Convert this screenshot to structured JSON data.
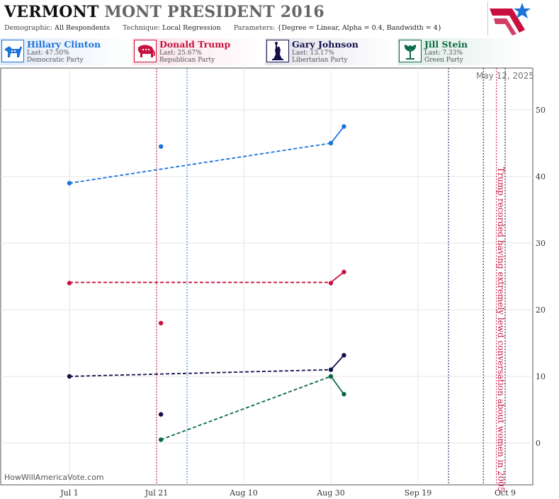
{
  "header": {
    "title_state": "VERMONT",
    "title_rest": "MONT PRESIDENT 2016",
    "demographic_label": "Demographic:",
    "demographic_value": "All Respondents",
    "technique_label": "Technique:",
    "technique_value": "Local Regression",
    "parameters_label": "Parameters:",
    "parameters_value": "{Degree = Linear, Alpha = 0.4, Bandwidth = 4}"
  },
  "candidates": [
    {
      "name": "Hillary Clinton",
      "last": "Last: 47.50%",
      "party": "Democratic Party",
      "color": "#1a73d9",
      "icon": "donkey-icon"
    },
    {
      "name": "Donald Trump",
      "last": "Last: 25.67%",
      "party": "Republican Party",
      "color": "#c8103e",
      "icon": "elephant-icon"
    },
    {
      "name": "Gary Johnson",
      "last": "Last: 13.17%",
      "party": "Libertarian Party",
      "color": "#14104a",
      "icon": "statue-of-liberty-icon"
    },
    {
      "name": "Jill Stein",
      "last": "Last: 7.33%",
      "party": "Green Party",
      "color": "#0c6b45",
      "icon": "green-leaf-icon"
    }
  ],
  "footer": {
    "site": "HowWillAmericaVote.com"
  },
  "chart_data": {
    "type": "scatter",
    "date_label": "May 12, 2025",
    "x_ticks": [
      "Jul 1",
      "Jul 21",
      "Aug 10",
      "Aug 30",
      "Sep 19",
      "Oct 9"
    ],
    "x_tick_dates": [
      "2016-07-01",
      "2016-07-21",
      "2016-08-10",
      "2016-08-30",
      "2016-09-19",
      "2016-10-09"
    ],
    "y_ticks": [
      0,
      10,
      20,
      30,
      40,
      50
    ],
    "ylim": [
      -6,
      56
    ],
    "grid": true,
    "annotation": "Trump recorded having extremely lewd conversation about women in 2005",
    "event_lines": [
      {
        "date": "2016-07-21",
        "color": "#c8103e"
      },
      {
        "date": "2016-07-28",
        "color": "#1a73d9"
      },
      {
        "date": "2016-09-26",
        "color": "#14104a"
      },
      {
        "date": "2016-10-04",
        "color": "#14104a"
      },
      {
        "date": "2016-10-07",
        "color": "#c8103e"
      },
      {
        "date": "2016-10-09",
        "color": "#14104a"
      }
    ],
    "series": [
      {
        "name": "Hillary Clinton",
        "color": "#1a73d9",
        "points": [
          {
            "x": "2016-07-01",
            "y": 39
          },
          {
            "x": "2016-07-22",
            "y": 44.5
          },
          {
            "x": "2016-08-30",
            "y": 45
          },
          {
            "x": "2016-09-02",
            "y": 47.5
          }
        ],
        "trend_dashed": [
          {
            "x": "2016-07-01",
            "y": 39
          },
          {
            "x": "2016-08-30",
            "y": 45
          }
        ],
        "trend_solid": [
          {
            "x": "2016-08-30",
            "y": 45
          },
          {
            "x": "2016-09-02",
            "y": 47.5
          }
        ]
      },
      {
        "name": "Donald Trump",
        "color": "#c8103e",
        "points": [
          {
            "x": "2016-07-01",
            "y": 24
          },
          {
            "x": "2016-07-22",
            "y": 18
          },
          {
            "x": "2016-08-30",
            "y": 24
          },
          {
            "x": "2016-09-02",
            "y": 25.67
          }
        ],
        "trend_dashed": [
          {
            "x": "2016-07-01",
            "y": 24.1
          },
          {
            "x": "2016-08-30",
            "y": 24.1
          }
        ],
        "trend_solid": [
          {
            "x": "2016-08-30",
            "y": 24.1
          },
          {
            "x": "2016-09-02",
            "y": 25.67
          }
        ]
      },
      {
        "name": "Gary Johnson",
        "color": "#14104a",
        "points": [
          {
            "x": "2016-07-01",
            "y": 10
          },
          {
            "x": "2016-07-22",
            "y": 4.3
          },
          {
            "x": "2016-08-30",
            "y": 11
          },
          {
            "x": "2016-09-02",
            "y": 13.17
          }
        ],
        "trend_dashed": [
          {
            "x": "2016-07-01",
            "y": 10
          },
          {
            "x": "2016-08-30",
            "y": 11
          }
        ],
        "trend_solid": [
          {
            "x": "2016-08-30",
            "y": 11
          },
          {
            "x": "2016-09-02",
            "y": 13.17
          }
        ]
      },
      {
        "name": "Jill Stein",
        "color": "#0c6b45",
        "points": [
          {
            "x": "2016-07-22",
            "y": 0.5
          },
          {
            "x": "2016-08-30",
            "y": 10
          },
          {
            "x": "2016-09-02",
            "y": 7.33
          }
        ],
        "trend_dashed": [
          {
            "x": "2016-07-22",
            "y": 0.5
          },
          {
            "x": "2016-08-30",
            "y": 10
          }
        ],
        "trend_solid": [
          {
            "x": "2016-08-30",
            "y": 10
          },
          {
            "x": "2016-09-02",
            "y": 7.33
          }
        ]
      }
    ]
  }
}
